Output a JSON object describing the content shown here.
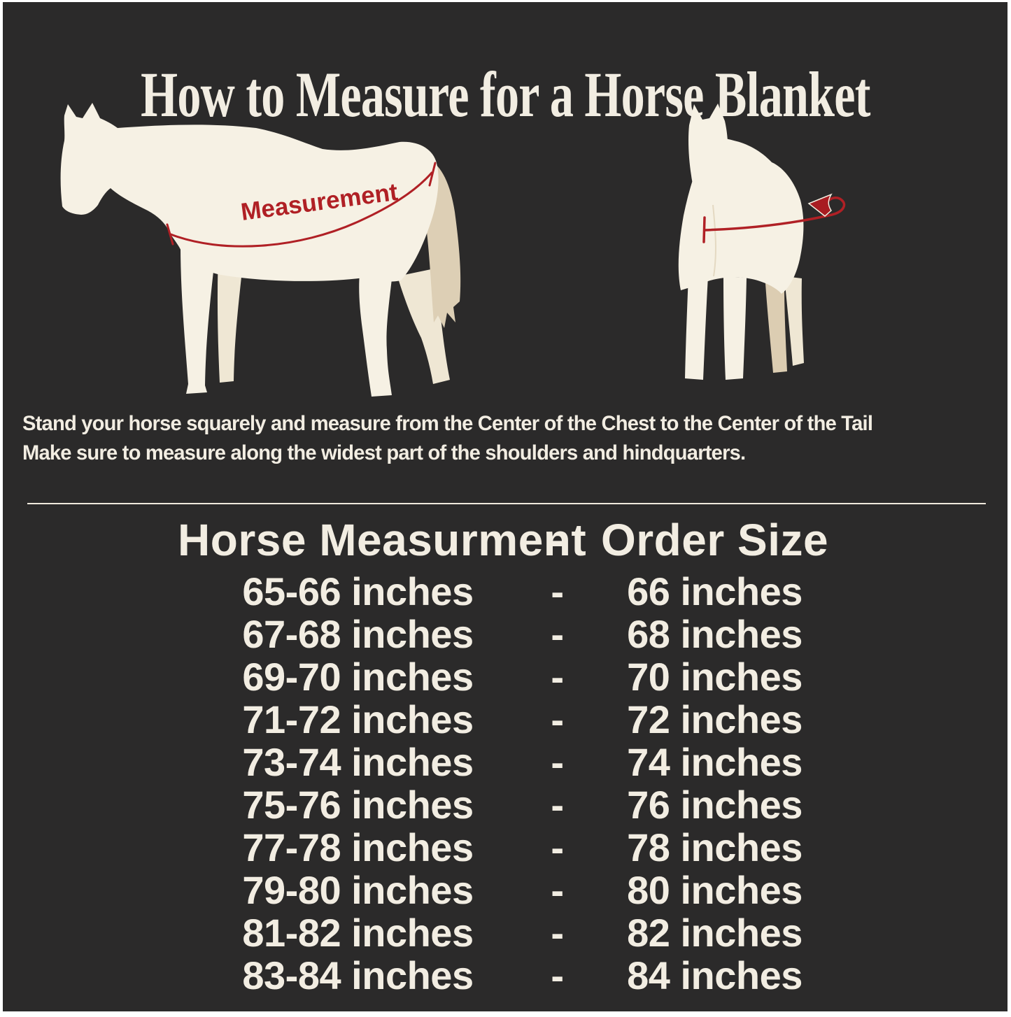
{
  "colors": {
    "background": "#2b2a2a",
    "frame": "#ffffff",
    "text_cream": "#f2ede2",
    "horse_body": "#f6f1e4",
    "horse_shadow": "#efe7d4",
    "tail_tan": "#ddcfb5",
    "measurement_red": "#b02025"
  },
  "title": "How to Measure for a Horse Blanket",
  "diagram": {
    "measurement_label": "Measurement"
  },
  "instructions": {
    "line1": "Stand your horse squarely and measure from the Center of the Chest to the Center of the Tail",
    "line2": "Make sure to measure along the widest part of the shoulders and hindquarters."
  },
  "size_table": {
    "header": {
      "measurement": "Horse Measurment",
      "separator": "-",
      "order_size": "Order Size"
    },
    "rows": [
      {
        "measurement": "65-66 inches",
        "separator": "-",
        "order_size": "66 inches"
      },
      {
        "measurement": "67-68 inches",
        "separator": "-",
        "order_size": "68 inches"
      },
      {
        "measurement": "69-70 inches",
        "separator": "-",
        "order_size": "70 inches"
      },
      {
        "measurement": "71-72 inches",
        "separator": "-",
        "order_size": "72 inches"
      },
      {
        "measurement": "73-74 inches",
        "separator": "-",
        "order_size": "74 inches"
      },
      {
        "measurement": "75-76 inches",
        "separator": "-",
        "order_size": "76 inches"
      },
      {
        "measurement": "77-78 inches",
        "separator": "-",
        "order_size": "78 inches"
      },
      {
        "measurement": "79-80 inches",
        "separator": "-",
        "order_size": "80 inches"
      },
      {
        "measurement": "81-82 inches",
        "separator": "-",
        "order_size": "82 inches"
      },
      {
        "measurement": "83-84 inches",
        "separator": "-",
        "order_size": "84 inches"
      }
    ]
  }
}
